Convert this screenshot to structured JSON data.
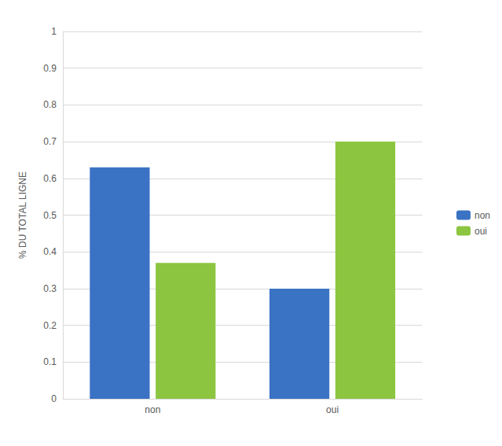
{
  "chart_data": {
    "type": "bar",
    "categories": [
      "non",
      "oui"
    ],
    "series": [
      {
        "name": "non",
        "color": "#3b73c4",
        "values": [
          0.63,
          0.3
        ]
      },
      {
        "name": "oui",
        "color": "#8cc540",
        "values": [
          0.37,
          0.7
        ]
      }
    ],
    "ylabel": "% DU TOTAL LIGNE",
    "ylim": [
      0,
      1
    ],
    "yticks": [
      0,
      0.1,
      0.2,
      0.3,
      0.4,
      0.5,
      0.6,
      0.7,
      0.8,
      0.9,
      1
    ],
    "grid": true,
    "legend": "right"
  }
}
